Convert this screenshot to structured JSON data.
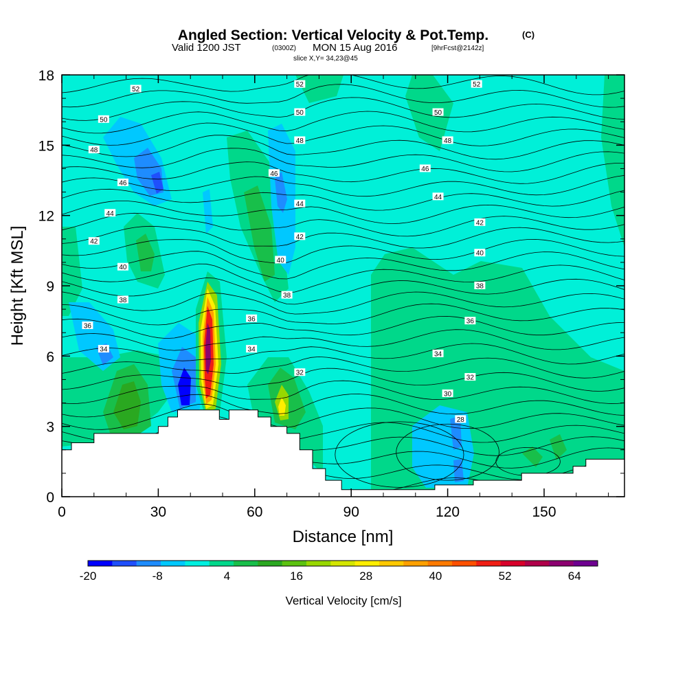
{
  "chart_data": {
    "type": "heatmap",
    "title": "Angled Section: Vertical Velocity & Pot.Temp.",
    "title_units": "(C)",
    "subtitle_prefix": "Valid 1200 JST",
    "subtitle_utc": "(0300Z)",
    "subtitle_date": "MON 15 Aug 2016",
    "subtitle_fcst": "[9hrFcst@2142z]",
    "slice_label": "slice X,Y= 34,23@45",
    "xlabel": "Distance [nm]",
    "ylabel": "Height [Kft MSL]",
    "xlim": [
      0,
      175
    ],
    "ylim": [
      0,
      18
    ],
    "x_ticks": [
      "0",
      "30",
      "60",
      "90",
      "120",
      "150"
    ],
    "x_tick_values": [
      0,
      30,
      60,
      90,
      120,
      150
    ],
    "y_ticks": [
      "0",
      "3",
      "6",
      "9",
      "12",
      "15",
      "18"
    ],
    "y_tick_values": [
      0,
      3,
      6,
      9,
      12,
      15,
      18
    ],
    "colorbar": {
      "label": "Vertical Velocity [cm/s]",
      "range": [
        -20,
        68
      ],
      "tick_labels": [
        "-20",
        "-8",
        "4",
        "16",
        "28",
        "40",
        "52",
        "64"
      ],
      "tick_values": [
        -20,
        -8,
        4,
        16,
        28,
        40,
        52,
        64
      ],
      "colors": [
        "#0000ff",
        "#1f4ffc",
        "#1e8cff",
        "#00c8ff",
        "#00f0e0",
        "#00d88a",
        "#18bf4a",
        "#2aa820",
        "#5cc210",
        "#98d800",
        "#d4e600",
        "#ffee00",
        "#ffc800",
        "#ffa000",
        "#ff7a00",
        "#ff5000",
        "#f01e14",
        "#d8002a",
        "#b0004a",
        "#8c0070",
        "#6e0090"
      ]
    },
    "terrain": [
      [
        0,
        2
      ],
      [
        3,
        2
      ],
      [
        3,
        2.3
      ],
      [
        10,
        2.3
      ],
      [
        10,
        2.7
      ],
      [
        30,
        2.7
      ],
      [
        30,
        3.0
      ],
      [
        33,
        3.0
      ],
      [
        33,
        3.4
      ],
      [
        36,
        3.4
      ],
      [
        36,
        3.7
      ],
      [
        49,
        3.7
      ],
      [
        49,
        3.3
      ],
      [
        52,
        3.3
      ],
      [
        52,
        3.7
      ],
      [
        61,
        3.7
      ],
      [
        61,
        3.4
      ],
      [
        65,
        3.4
      ],
      [
        65,
        3.0
      ],
      [
        70,
        3.0
      ],
      [
        70,
        2.7
      ],
      [
        74,
        2.7
      ],
      [
        74,
        2.0
      ],
      [
        78,
        2.0
      ],
      [
        78,
        1.2
      ],
      [
        82,
        1.2
      ],
      [
        82,
        0.7
      ],
      [
        87,
        0.7
      ],
      [
        87,
        0.3
      ],
      [
        116,
        0.3
      ],
      [
        116,
        0.5
      ],
      [
        128,
        0.5
      ],
      [
        128,
        0.7
      ],
      [
        143,
        0.7
      ],
      [
        143,
        1.0
      ],
      [
        159,
        1.0
      ],
      [
        159,
        1.3
      ],
      [
        163,
        1.3
      ],
      [
        163,
        1.6
      ],
      [
        175,
        1.6
      ]
    ],
    "theta_labels": [
      {
        "text": "52",
        "x": 23,
        "y": 17.4
      },
      {
        "text": "52",
        "x": 74,
        "y": 17.6
      },
      {
        "text": "52",
        "x": 129,
        "y": 17.6
      },
      {
        "text": "50",
        "x": 13,
        "y": 16.1
      },
      {
        "text": "50",
        "x": 74,
        "y": 16.4
      },
      {
        "text": "50",
        "x": 117,
        "y": 16.4
      },
      {
        "text": "48",
        "x": 10,
        "y": 14.8
      },
      {
        "text": "48",
        "x": 74,
        "y": 15.2
      },
      {
        "text": "48",
        "x": 120,
        "y": 15.2
      },
      {
        "text": "46",
        "x": 19,
        "y": 13.4
      },
      {
        "text": "46",
        "x": 66,
        "y": 13.8
      },
      {
        "text": "46",
        "x": 113,
        "y": 14.0
      },
      {
        "text": "44",
        "x": 15,
        "y": 12.1
      },
      {
        "text": "44",
        "x": 74,
        "y": 12.5
      },
      {
        "text": "44",
        "x": 117,
        "y": 12.8
      },
      {
        "text": "42",
        "x": 10,
        "y": 10.9
      },
      {
        "text": "42",
        "x": 74,
        "y": 11.1
      },
      {
        "text": "42",
        "x": 130,
        "y": 11.7
      },
      {
        "text": "40",
        "x": 19,
        "y": 9.8
      },
      {
        "text": "40",
        "x": 68,
        "y": 10.1
      },
      {
        "text": "40",
        "x": 130,
        "y": 10.4
      },
      {
        "text": "38",
        "x": 19,
        "y": 8.4
      },
      {
        "text": "38",
        "x": 70,
        "y": 8.6
      },
      {
        "text": "38",
        "x": 130,
        "y": 9.0
      },
      {
        "text": "36",
        "x": 8,
        "y": 7.3
      },
      {
        "text": "36",
        "x": 59,
        "y": 7.6
      },
      {
        "text": "36",
        "x": 127,
        "y": 7.5
      },
      {
        "text": "34",
        "x": 13,
        "y": 6.3
      },
      {
        "text": "34",
        "x": 59,
        "y": 6.3
      },
      {
        "text": "34",
        "x": 117,
        "y": 6.1
      },
      {
        "text": "32",
        "x": 74,
        "y": 5.3
      },
      {
        "text": "32",
        "x": 127,
        "y": 5.1
      },
      {
        "text": "30",
        "x": 120,
        "y": 4.4
      },
      {
        "text": "28",
        "x": 124,
        "y": 3.3
      }
    ]
  }
}
